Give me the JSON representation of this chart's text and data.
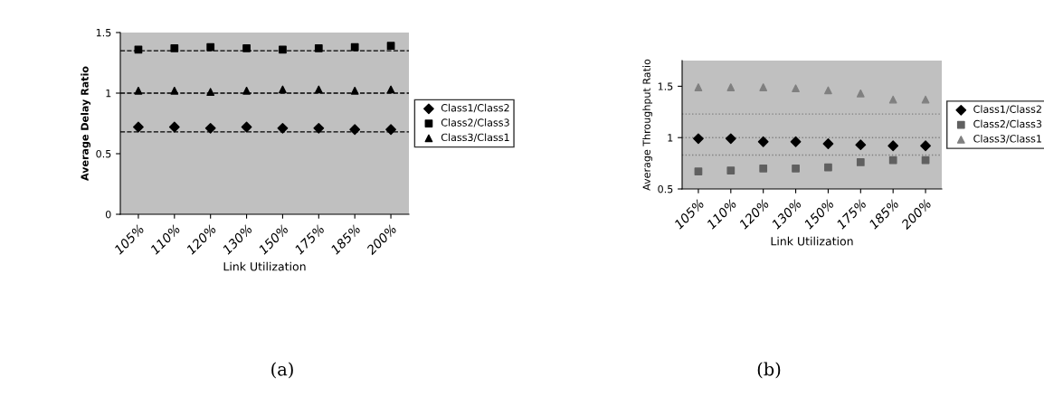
{
  "chart_data": [
    {
      "type": "scatter",
      "xlabel": "Link Utilization",
      "ylabel": "Average Delay Ratio",
      "categories": [
        "105%",
        "110%",
        "120%",
        "130%",
        "150%",
        "175%",
        "185%",
        "200%"
      ],
      "ylim": [
        0,
        1.5
      ],
      "yticks": [
        0,
        0.5,
        1,
        1.5
      ],
      "legend": "right",
      "grid": false,
      "annotations": [
        "(a)"
      ],
      "series": [
        {
          "name": "Class1/Class2",
          "color": "#000000",
          "marker": "diamond",
          "values": [
            0.72,
            0.72,
            0.71,
            0.72,
            0.71,
            0.71,
            0.7,
            0.7
          ]
        },
        {
          "name": "Class2/Class3",
          "color": "#000000",
          "marker": "square",
          "values": [
            1.36,
            1.37,
            1.38,
            1.37,
            1.36,
            1.37,
            1.38,
            1.39
          ]
        },
        {
          "name": "Class3/Class1",
          "color": "#000000",
          "marker": "triangle",
          "values": [
            1.02,
            1.02,
            1.01,
            1.02,
            1.03,
            1.03,
            1.02,
            1.03
          ]
        }
      ],
      "ref_lines": [
        {
          "axis": "y",
          "value": 0.68,
          "color": "#000000",
          "line_style": "dashed"
        },
        {
          "axis": "y",
          "value": 1.0,
          "color": "#000000",
          "line_style": "dashed"
        },
        {
          "axis": "y",
          "value": 1.35,
          "color": "#000000",
          "line_style": "dashed"
        }
      ]
    },
    {
      "type": "scatter",
      "xlabel": "Link Utilization",
      "ylabel": "Average Throughput Ratio",
      "categories": [
        "105%",
        "110%",
        "120%",
        "130%",
        "150%",
        "175%",
        "185%",
        "200%"
      ],
      "ylim": [
        0.5,
        1.75
      ],
      "yticks": [
        0.5,
        1,
        1.5
      ],
      "legend": "right",
      "grid": false,
      "annotations": [
        "(b)"
      ],
      "series": [
        {
          "name": "Class1/Class2",
          "color": "#000000",
          "marker": "diamond",
          "values": [
            0.99,
            0.99,
            0.96,
            0.96,
            0.94,
            0.93,
            0.92,
            0.92
          ]
        },
        {
          "name": "Class2/Class3",
          "color": "#606060",
          "marker": "square",
          "values": [
            0.67,
            0.68,
            0.7,
            0.7,
            0.71,
            0.76,
            0.78,
            0.78
          ]
        },
        {
          "name": "Class3/Class1",
          "color": "#808080",
          "marker": "triangle",
          "values": [
            1.49,
            1.49,
            1.49,
            1.48,
            1.46,
            1.43,
            1.37,
            1.37
          ]
        }
      ],
      "ref_lines": [
        {
          "axis": "y",
          "value": 0.83,
          "color": "#808080",
          "line_style": "dotted"
        },
        {
          "axis": "y",
          "value": 1.0,
          "color": "#808080",
          "line_style": "dotted"
        },
        {
          "axis": "y",
          "value": 1.23,
          "color": "#808080",
          "line_style": "dotted"
        }
      ]
    }
  ]
}
